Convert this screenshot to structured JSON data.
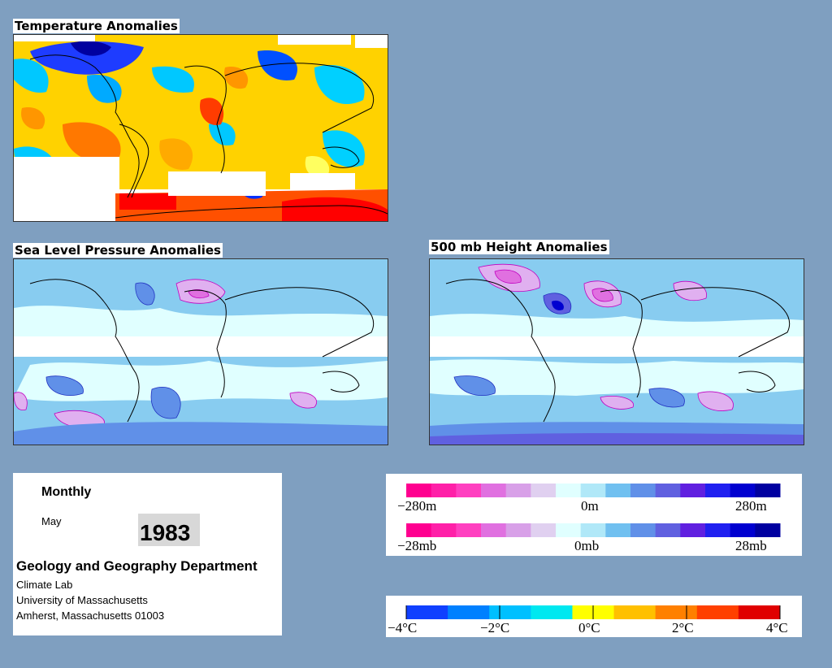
{
  "panels": {
    "temperature": {
      "title": "Temperature Anomalies"
    },
    "slp": {
      "title": "Sea Level Pressure Anomalies"
    },
    "height": {
      "title": "500 mb Height Anomalies"
    }
  },
  "info": {
    "period": "Monthly",
    "month": "May",
    "year": "1983",
    "department": "Geology and Geography Department",
    "lab": "Climate Lab",
    "university": "University of Massachusetts",
    "address": "Amherst, Massachusetts 01003"
  },
  "legends": {
    "height": {
      "labels": [
        "−280m",
        "0m",
        "280m"
      ]
    },
    "pressure": {
      "labels": [
        "−28mb",
        "0mb",
        "28mb"
      ]
    },
    "temperature": {
      "labels": [
        "−4°C",
        "−2°C",
        "0°C",
        "2°C",
        "4°C"
      ]
    }
  },
  "colors": {
    "background": "#7f9fc0",
    "anomaly_scale": [
      "#ff0090",
      "#ff20a8",
      "#ff40c0",
      "#e070e0",
      "#d8a0e8",
      "#e0d0f0",
      "#e0ffff",
      "#b0e8f8",
      "#70c0f0",
      "#6090e8",
      "#6060e0",
      "#6020e0",
      "#2020f0",
      "#0000d0",
      "#0000a0"
    ],
    "temperature_scale": [
      "#1040ff",
      "#0080ff",
      "#00c0ff",
      "#00e8f0",
      "#ffff00",
      "#ffc000",
      "#ff8000",
      "#ff4000",
      "#e00000"
    ]
  }
}
